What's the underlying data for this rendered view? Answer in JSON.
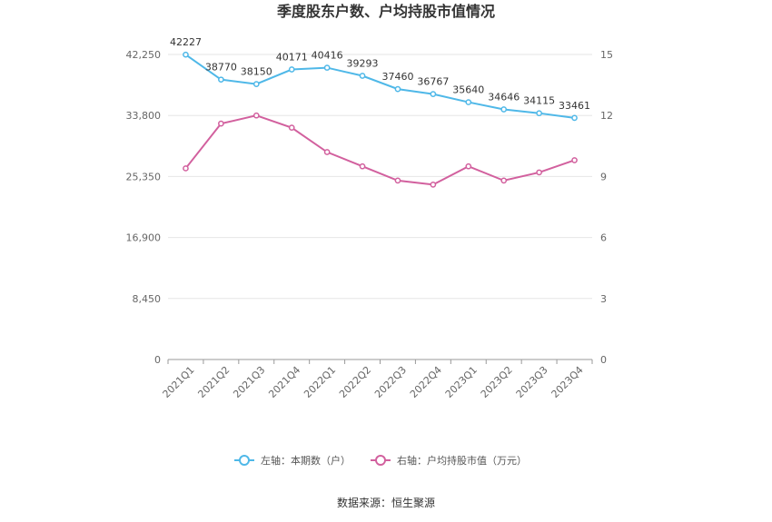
{
  "chart_data": {
    "type": "line",
    "title": "季度股东户数、户均持股市值情况",
    "categories": [
      "2021Q1",
      "2021Q2",
      "2021Q3",
      "2021Q4",
      "2022Q1",
      "2022Q2",
      "2022Q3",
      "2022Q4",
      "2023Q1",
      "2023Q2",
      "2023Q3",
      "2023Q4"
    ],
    "series": [
      {
        "name": "左轴：本期数（户）",
        "axis": "left",
        "color": "#4fb8e8",
        "values": [
          42227,
          38770,
          38150,
          40171,
          40416,
          39293,
          37460,
          36767,
          35640,
          34646,
          34115,
          33461
        ],
        "labels": [
          "42227",
          "38770",
          "38150",
          "40171",
          "40416",
          "39293",
          "37460",
          "36767",
          "35640",
          "34646",
          "34115",
          "33461"
        ]
      },
      {
        "name": "右轴：户均持股市值（万元）",
        "axis": "right",
        "color": "#d2609e",
        "values": [
          9.4,
          11.6,
          12.0,
          11.4,
          10.2,
          9.5,
          8.8,
          8.6,
          9.5,
          8.8,
          9.2,
          9.8
        ]
      }
    ],
    "left_axis": {
      "min": 0,
      "max": 42250,
      "ticks": [
        0,
        8450,
        16900,
        25350,
        33800,
        42250
      ],
      "tick_labels": [
        "0",
        "8,450",
        "16,900",
        "25,350",
        "33,800",
        "42,250"
      ]
    },
    "right_axis": {
      "min": 0,
      "max": 15,
      "ticks": [
        0,
        3,
        6,
        9,
        12,
        15
      ],
      "tick_labels": [
        "0",
        "3",
        "6",
        "9",
        "12",
        "15"
      ]
    },
    "grid": true,
    "legend_position": "bottom"
  },
  "source": "数据来源：恒生聚源"
}
